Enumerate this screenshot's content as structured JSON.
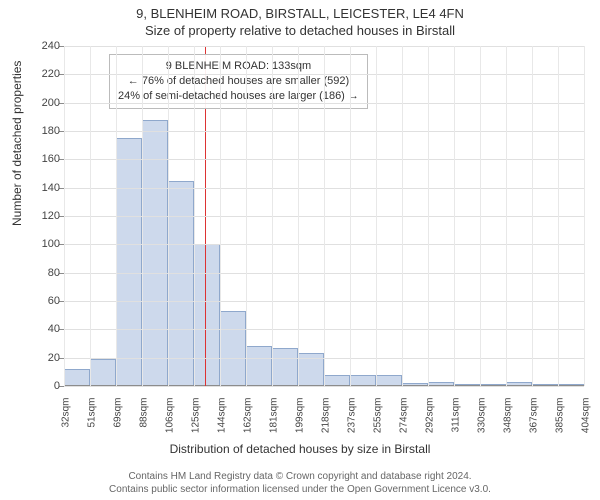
{
  "titles": {
    "main": "9, BLENHEIM ROAD, BIRSTALL, LEICESTER, LE4 4FN",
    "sub": "Size of property relative to detached houses in Birstall"
  },
  "axes": {
    "ylabel": "Number of detached properties",
    "xlabel": "Distribution of detached houses by size in Birstall",
    "ylim": [
      0,
      240
    ],
    "yticks": [
      0,
      20,
      40,
      60,
      80,
      100,
      120,
      140,
      160,
      180,
      200,
      220,
      240
    ],
    "xticks": [
      "32sqm",
      "51sqm",
      "69sqm",
      "88sqm",
      "106sqm",
      "125sqm",
      "144sqm",
      "162sqm",
      "181sqm",
      "199sqm",
      "218sqm",
      "237sqm",
      "255sqm",
      "274sqm",
      "292sqm",
      "311sqm",
      "330sqm",
      "348sqm",
      "367sqm",
      "385sqm",
      "404sqm"
    ]
  },
  "chart": {
    "type": "histogram",
    "x_range_sqm": [
      32,
      404
    ],
    "bin_width_sqm": 18.6,
    "values": [
      12,
      19,
      175,
      188,
      145,
      100,
      53,
      28,
      27,
      23,
      8,
      8,
      8,
      2,
      3,
      1,
      0,
      3,
      1,
      0
    ],
    "bar_fill": "#cdd9ec",
    "bar_border": "#8fa8cc",
    "grid_color": "#e0e0e0",
    "background_color": "#ffffff",
    "reference_line": {
      "value_sqm": 133,
      "color": "#dd3333"
    }
  },
  "callout": {
    "line1": "9 BLENHEIM ROAD: 133sqm",
    "line2": "← 76% of detached houses are smaller (592)",
    "line3": "24% of semi-detached houses are larger (186) →"
  },
  "footnote": {
    "line1": "Contains HM Land Registry data © Crown copyright and database right 2024.",
    "line2": "Contains public sector information licensed under the Open Government Licence v3.0."
  }
}
